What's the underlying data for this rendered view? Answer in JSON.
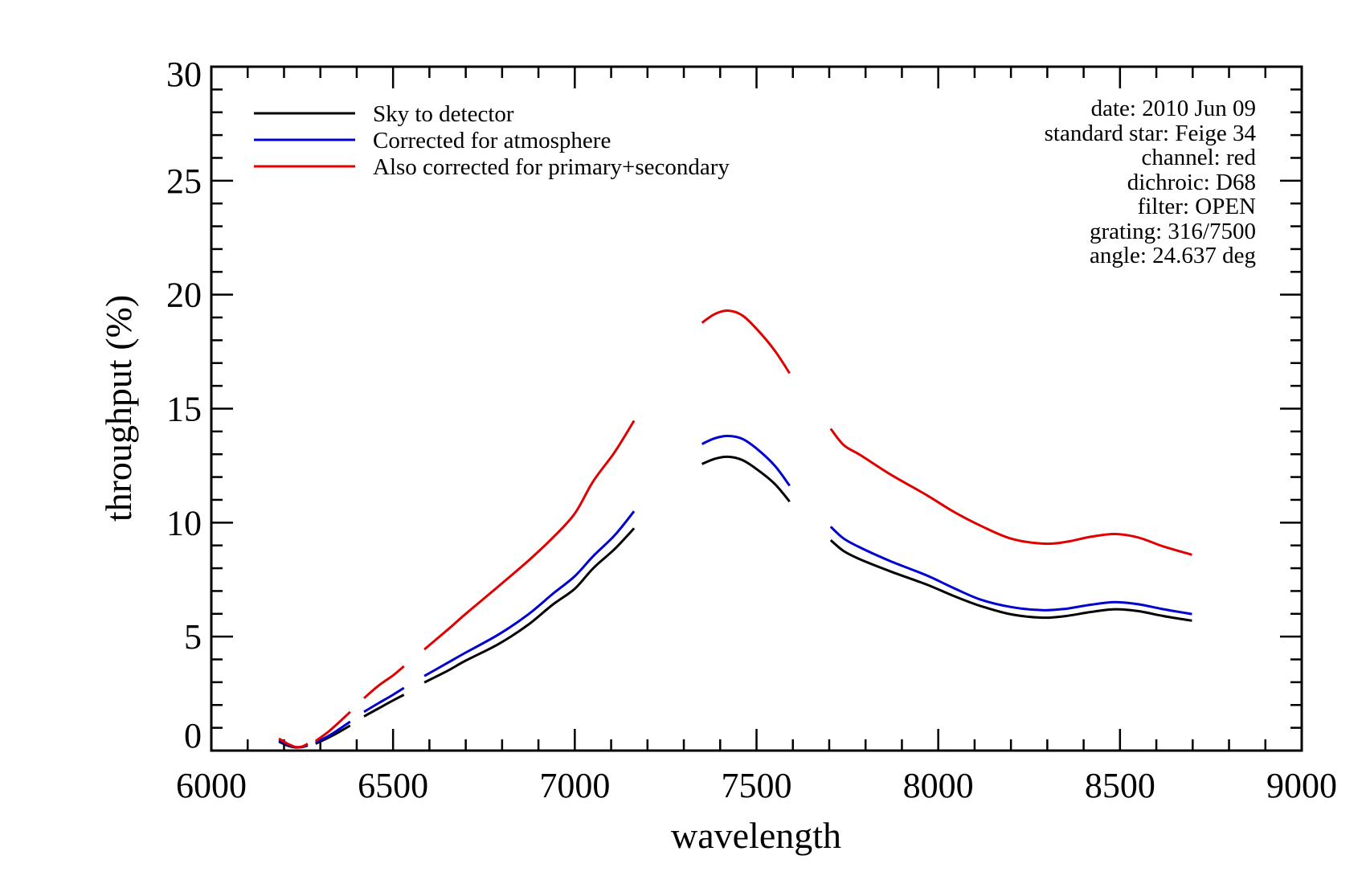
{
  "chart_data": {
    "type": "line",
    "title": "",
    "xlabel": "wavelength",
    "ylabel": "throughput (%)",
    "xlim": [
      6000,
      9000
    ],
    "ylim": [
      0,
      30
    ],
    "x_major_ticks": [
      6000,
      6500,
      7000,
      7500,
      8000,
      8500,
      9000
    ],
    "x_tick_labels": [
      "6000",
      "6500",
      "7000",
      "7500",
      "8000",
      "8500",
      "9000"
    ],
    "x_minor_step": 100,
    "y_major_ticks": [
      0,
      5,
      10,
      15,
      20,
      25,
      30
    ],
    "y_tick_labels": [
      "0",
      "5",
      "10",
      "15",
      "20",
      "25",
      "30"
    ],
    "y_minor_step": 1,
    "grid": false,
    "legend": {
      "placement": "top-left",
      "entries": [
        {
          "label": "Sky to detector",
          "color": "#000000"
        },
        {
          "label": "Corrected for atmosphere",
          "color": "#0000d0"
        },
        {
          "label": "Also corrected for primary+secondary",
          "color": "#e00000"
        }
      ]
    },
    "annotation": {
      "placement": "top-right",
      "lines": [
        "date: 2010 Jun 09",
        "standard star: Feige 34",
        "channel: red",
        "dichroic: D68",
        "filter: OPEN",
        "grating: 316/7500",
        "angle: 24.637 deg"
      ]
    },
    "series": [
      {
        "name": "Sky to detector",
        "color": "#000000",
        "segments": [
          [
            [
              6186,
              0.39
            ],
            [
              6210,
              0.22
            ],
            [
              6232,
              0.14
            ],
            [
              6250,
              0.16
            ],
            [
              6265,
              0.22
            ]
          ],
          [
            [
              6287,
              0.3
            ],
            [
              6320,
              0.55
            ],
            [
              6350,
              0.8
            ],
            [
              6382,
              1.1
            ]
          ],
          [
            [
              6420,
              1.5
            ],
            [
              6460,
              1.85
            ],
            [
              6500,
              2.2
            ],
            [
              6530,
              2.45
            ]
          ],
          [
            [
              6586,
              2.99
            ],
            [
              6650,
              3.5
            ],
            [
              6700,
              3.95
            ],
            [
              6791,
              4.68
            ],
            [
              6870,
              5.5
            ],
            [
              6939,
              6.4
            ],
            [
              7000,
              7.1
            ],
            [
              7050,
              7.99
            ],
            [
              7110,
              8.85
            ],
            [
              7163,
              9.75
            ]
          ],
          [
            [
              7350,
              12.57
            ],
            [
              7385,
              12.8
            ],
            [
              7421,
              12.89
            ],
            [
              7460,
              12.75
            ],
            [
              7500,
              12.35
            ],
            [
              7550,
              11.7
            ],
            [
              7591,
              10.92
            ]
          ],
          [
            [
              7704,
              9.23
            ],
            [
              7740,
              8.75
            ],
            [
              7786,
              8.38
            ],
            [
              7870,
              7.85
            ],
            [
              7969,
              7.28
            ],
            [
              8040,
              6.8
            ],
            [
              8117,
              6.34
            ],
            [
              8200,
              5.98
            ],
            [
              8287,
              5.83
            ],
            [
              8350,
              5.9
            ],
            [
              8420,
              6.08
            ],
            [
              8486,
              6.2
            ],
            [
              8550,
              6.12
            ],
            [
              8620,
              5.9
            ],
            [
              8698,
              5.7
            ]
          ]
        ]
      },
      {
        "name": "Corrected for atmosphere",
        "color": "#0000d0",
        "segments": [
          [
            [
              6186,
              0.45
            ],
            [
              6210,
              0.26
            ],
            [
              6232,
              0.15
            ],
            [
              6250,
              0.17
            ],
            [
              6265,
              0.25
            ]
          ],
          [
            [
              6287,
              0.36
            ],
            [
              6320,
              0.62
            ],
            [
              6350,
              0.92
            ],
            [
              6382,
              1.27
            ]
          ],
          [
            [
              6420,
              1.7
            ],
            [
              6460,
              2.08
            ],
            [
              6500,
              2.45
            ],
            [
              6530,
              2.75
            ]
          ],
          [
            [
              6586,
              3.27
            ],
            [
              6650,
              3.85
            ],
            [
              6700,
              4.3
            ],
            [
              6791,
              5.1
            ],
            [
              6870,
              5.95
            ],
            [
              6939,
              6.87
            ],
            [
              7000,
              7.65
            ],
            [
              7050,
              8.52
            ],
            [
              7110,
              9.45
            ],
            [
              7163,
              10.5
            ]
          ],
          [
            [
              7350,
              13.45
            ],
            [
              7385,
              13.7
            ],
            [
              7421,
              13.8
            ],
            [
              7460,
              13.68
            ],
            [
              7500,
              13.25
            ],
            [
              7550,
              12.5
            ],
            [
              7591,
              11.62
            ]
          ],
          [
            [
              7704,
              9.82
            ],
            [
              7740,
              9.3
            ],
            [
              7786,
              8.9
            ],
            [
              7870,
              8.3
            ],
            [
              7969,
              7.68
            ],
            [
              8040,
              7.15
            ],
            [
              8117,
              6.62
            ],
            [
              8200,
              6.3
            ],
            [
              8287,
              6.16
            ],
            [
              8350,
              6.22
            ],
            [
              8420,
              6.4
            ],
            [
              8486,
              6.51
            ],
            [
              8550,
              6.42
            ],
            [
              8620,
              6.2
            ],
            [
              8698,
              5.99
            ]
          ]
        ]
      },
      {
        "name": "Also corrected for primary+secondary",
        "color": "#e00000",
        "segments": [
          [
            [
              6186,
              0.53
            ],
            [
              6210,
              0.3
            ],
            [
              6232,
              0.16
            ],
            [
              6250,
              0.18
            ],
            [
              6265,
              0.3
            ]
          ],
          [
            [
              6287,
              0.42
            ],
            [
              6320,
              0.8
            ],
            [
              6350,
              1.22
            ],
            [
              6382,
              1.7
            ]
          ],
          [
            [
              6420,
              2.3
            ],
            [
              6460,
              2.85
            ],
            [
              6500,
              3.3
            ],
            [
              6530,
              3.7
            ]
          ],
          [
            [
              6586,
              4.44
            ],
            [
              6650,
              5.3
            ],
            [
              6700,
              6.0
            ],
            [
              6791,
              7.22
            ],
            [
              6870,
              8.3
            ],
            [
              6939,
              9.33
            ],
            [
              7000,
              10.4
            ],
            [
              7050,
              11.8
            ],
            [
              7110,
              13.1
            ],
            [
              7163,
              14.47
            ]
          ],
          [
            [
              7350,
              18.77
            ],
            [
              7385,
              19.15
            ],
            [
              7421,
              19.3
            ],
            [
              7460,
              19.1
            ],
            [
              7500,
              18.5
            ],
            [
              7550,
              17.55
            ],
            [
              7591,
              16.55
            ]
          ],
          [
            [
              7704,
              14.12
            ],
            [
              7740,
              13.4
            ],
            [
              7786,
              12.96
            ],
            [
              7870,
              12.1
            ],
            [
              7969,
              11.2
            ],
            [
              8040,
              10.5
            ],
            [
              8117,
              9.86
            ],
            [
              8200,
              9.3
            ],
            [
              8287,
              9.08
            ],
            [
              8350,
              9.15
            ],
            [
              8420,
              9.38
            ],
            [
              8486,
              9.5
            ],
            [
              8550,
              9.35
            ],
            [
              8620,
              8.95
            ],
            [
              8698,
              8.59
            ]
          ]
        ]
      }
    ]
  }
}
